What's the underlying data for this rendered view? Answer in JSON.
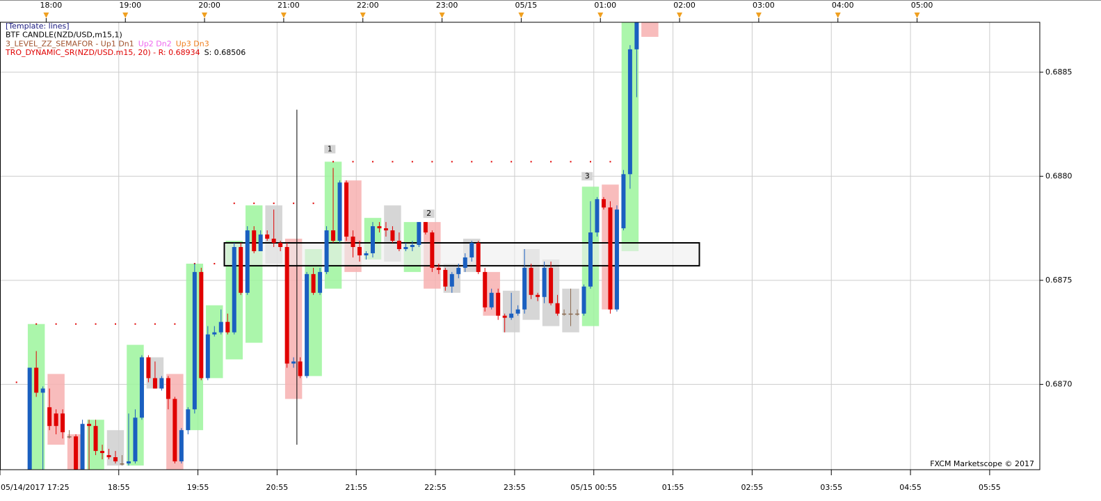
{
  "chart_data": {
    "type": "candlestick",
    "legend_lines": [
      [
        {
          "text": "[Template: lines]",
          "color": "#1a1a80"
        }
      ],
      [
        {
          "text": "BTF CANDLE(NZD/USD,m15,1)",
          "color": "#000000"
        }
      ],
      [
        {
          "text": "3_LEVEL_ZZ_SEMAFOR -  Up1  Dn1",
          "color": "#a0522d"
        },
        {
          "text": "Up2  Dn2",
          "color": "#ee66ee"
        },
        {
          "text": "Up3  Dn3",
          "color": "#f08020"
        }
      ],
      [
        {
          "text": "TRO_DYNAMIC_SR(NZD/USD.m15, 20) -  R: 0.68934",
          "color": "#e00000"
        },
        {
          "text": "S: 0.68506",
          "color": "#000000"
        }
      ]
    ],
    "x": [
      1065,
      1070,
      1075,
      1080,
      1085,
      1090,
      1095,
      1100,
      1105,
      1110,
      1115,
      1120,
      1125,
      1130,
      1135,
      1140,
      1145,
      1150,
      1155,
      1160,
      1165,
      1170,
      1175,
      1180,
      1185,
      1190,
      1195,
      1200,
      1205,
      1210,
      1215,
      1220,
      1225,
      1230,
      1235,
      1240,
      1245,
      1250,
      1255,
      1260,
      1265,
      1270,
      1275,
      1280,
      1285,
      1290,
      1295,
      1300,
      1305,
      1310,
      1315,
      1320,
      1325,
      1330,
      1335,
      1340,
      1345,
      1350,
      1355,
      1360,
      1365,
      1370,
      1375,
      1380,
      1385,
      1390,
      1395,
      1400,
      1405,
      1410,
      1415,
      1420,
      1425,
      1430,
      1435,
      1440,
      1445,
      1450,
      1455,
      1460,
      1465,
      1470,
      1475,
      1480,
      1485,
      1490,
      1495,
      1500,
      1505,
      1510,
      1515,
      1520,
      1525
    ],
    "open": [
      0.68659,
      0.68708,
      0.68696,
      0.68689,
      0.68686,
      0.68686,
      0.68675,
      0.68675,
      0.68659,
      0.68681,
      0.6868,
      0.68668,
      0.68666,
      0.68665,
      0.68662,
      0.68662,
      0.68663,
      0.68684,
      0.68713,
      0.68703,
      0.68698,
      0.68703,
      0.68693,
      0.68663,
      0.68678,
      0.68688,
      0.68754,
      0.68703,
      0.68724,
      0.68725,
      0.6873,
      0.68725,
      0.68766,
      0.68744,
      0.68774,
      0.68764,
      0.68772,
      0.6877,
      0.68768,
      0.68766,
      0.6871,
      0.68711,
      0.68704,
      0.68753,
      0.68744,
      0.68754,
      0.68774,
      0.68769,
      0.68797,
      0.68771,
      0.68766,
      0.68762,
      0.68763,
      0.68776,
      0.68775,
      0.68774,
      0.68769,
      0.68765,
      0.68766,
      0.68767,
      0.68778,
      0.68773,
      0.68756,
      0.68755,
      0.68747,
      0.68753,
      0.68756,
      0.68761,
      0.68768,
      0.68754,
      0.68737,
      0.68744,
      0.68733,
      0.68732,
      0.68734,
      0.68736,
      0.68756,
      0.68743,
      0.68742,
      0.68756,
      0.68739,
      0.68734,
      0.68734,
      0.68734,
      0.68734,
      0.68747,
      0.68773,
      0.68789,
      0.68785,
      0.68736,
      0.68775,
      0.68801,
      0.68861
    ],
    "high": [
      0.68708,
      0.68716,
      0.68699,
      0.68698,
      0.68688,
      0.68688,
      0.68678,
      0.68676,
      0.68683,
      0.68683,
      0.68683,
      0.68671,
      0.68669,
      0.68668,
      0.68666,
      0.68686,
      0.68688,
      0.68714,
      0.68714,
      0.68711,
      0.68704,
      0.68704,
      0.68694,
      0.68679,
      0.68689,
      0.68758,
      0.68756,
      0.68728,
      0.68728,
      0.68736,
      0.68734,
      0.68768,
      0.68768,
      0.68776,
      0.68776,
      0.68774,
      0.68774,
      0.68784,
      0.68769,
      0.68768,
      0.68713,
      0.68713,
      0.68754,
      0.68756,
      0.68756,
      0.68776,
      0.68804,
      0.68798,
      0.68798,
      0.68774,
      0.68769,
      0.68764,
      0.68778,
      0.68778,
      0.68778,
      0.68776,
      0.68773,
      0.68768,
      0.68769,
      0.68778,
      0.68778,
      0.68774,
      0.68758,
      0.68756,
      0.68754,
      0.68758,
      0.68763,
      0.68769,
      0.68769,
      0.68756,
      0.68746,
      0.68746,
      0.68734,
      0.68744,
      0.68738,
      0.68765,
      0.68758,
      0.68744,
      0.68759,
      0.68759,
      0.68743,
      0.68736,
      0.68746,
      0.68736,
      0.68748,
      0.68788,
      0.6879,
      0.6879,
      0.68788,
      0.68786,
      0.68803,
      0.68863,
      0.68874
    ],
    "low": [
      0.68659,
      0.68694,
      0.68659,
      0.68678,
      0.68676,
      0.68674,
      0.68674,
      0.68659,
      0.68659,
      0.68659,
      0.68666,
      0.68664,
      0.68664,
      0.68662,
      0.68661,
      0.68661,
      0.68662,
      0.68683,
      0.68701,
      0.68698,
      0.68697,
      0.68688,
      0.68662,
      0.68662,
      0.68676,
      0.68686,
      0.68702,
      0.68702,
      0.68723,
      0.68724,
      0.68724,
      0.68724,
      0.68743,
      0.68743,
      0.68763,
      0.68764,
      0.68769,
      0.68766,
      0.68764,
      0.68708,
      0.68708,
      0.68703,
      0.68703,
      0.68743,
      0.68743,
      0.68753,
      0.68768,
      0.68768,
      0.68769,
      0.68761,
      0.68759,
      0.6876,
      0.68761,
      0.68773,
      0.68771,
      0.68768,
      0.68764,
      0.68764,
      0.68764,
      0.68766,
      0.68772,
      0.68754,
      0.68753,
      0.68745,
      0.68744,
      0.68751,
      0.68754,
      0.68759,
      0.68753,
      0.68735,
      0.68736,
      0.68731,
      0.68725,
      0.68731,
      0.68733,
      0.68734,
      0.68741,
      0.6874,
      0.68739,
      0.68738,
      0.68733,
      0.68733,
      0.68728,
      0.68733,
      0.68733,
      0.68746,
      0.68771,
      0.68784,
      0.68734,
      0.68735,
      0.68774,
      0.68794,
      0.68838
    ],
    "close": [
      0.68708,
      0.68696,
      0.68698,
      0.6868,
      0.6868,
      0.68677,
      0.68675,
      0.68659,
      0.68681,
      0.6868,
      0.68668,
      0.68667,
      0.68665,
      0.68663,
      0.68662,
      0.68663,
      0.68684,
      0.68713,
      0.68703,
      0.68698,
      0.68703,
      0.68693,
      0.68663,
      0.68678,
      0.68688,
      0.68754,
      0.68703,
      0.68724,
      0.68725,
      0.6873,
      0.68725,
      0.68766,
      0.68744,
      0.68774,
      0.68764,
      0.68772,
      0.6877,
      0.68768,
      0.68766,
      0.6871,
      0.68711,
      0.68704,
      0.68753,
      0.68744,
      0.68754,
      0.68774,
      0.68769,
      0.68797,
      0.68771,
      0.68766,
      0.68762,
      0.68763,
      0.68776,
      0.68775,
      0.68774,
      0.68769,
      0.68765,
      0.68766,
      0.68767,
      0.68778,
      0.68773,
      0.68756,
      0.68755,
      0.68747,
      0.68753,
      0.68756,
      0.68761,
      0.68768,
      0.68754,
      0.68737,
      0.68744,
      0.68733,
      0.68732,
      0.68734,
      0.68736,
      0.68756,
      0.68743,
      0.68742,
      0.68756,
      0.68739,
      0.68734,
      0.68734,
      0.68734,
      0.68734,
      0.68747,
      0.68773,
      0.68789,
      0.68785,
      0.68736,
      0.68784,
      0.68801,
      0.68861,
      0.68874
    ],
    "up_color": "#1a5fc0",
    "down_color": "#e00000",
    "flat_color": "#8a6a50",
    "m15": {
      "x": [
        1065,
        1080,
        1095,
        1110,
        1125,
        1140,
        1155,
        1170,
        1185,
        1200,
        1215,
        1230,
        1245,
        1260,
        1275,
        1290,
        1305,
        1320,
        1335,
        1350,
        1365,
        1380,
        1395,
        1410,
        1425,
        1440,
        1455,
        1470,
        1485,
        1500,
        1515,
        1530
      ],
      "open": [
        0.68659,
        0.68705,
        0.68676,
        0.68659,
        0.68661,
        0.68661,
        0.68698,
        0.68705,
        0.68678,
        0.68703,
        0.68712,
        0.6872,
        0.68758,
        0.6877,
        0.68704,
        0.68746,
        0.68798,
        0.6876,
        0.68759,
        0.68754,
        0.68778,
        0.68744,
        0.68754,
        0.68754,
        0.68725,
        0.68731,
        0.68728,
        0.68725,
        0.68728,
        0.68796,
        0.68764,
        0.68874
      ],
      "close": [
        0.68729,
        0.68671,
        0.68659,
        0.68683,
        0.68678,
        0.68719,
        0.68713,
        0.68659,
        0.68758,
        0.68738,
        0.68769,
        0.68786,
        0.68786,
        0.68693,
        0.68765,
        0.68807,
        0.68754,
        0.6878,
        0.68786,
        0.68778,
        0.68746,
        0.68758,
        0.6877,
        0.68733,
        0.68745,
        0.68765,
        0.6876,
        0.68746,
        0.68795,
        0.68736,
        0.68874,
        0.68867
      ],
      "colors": [
        "#9cf59c",
        "#f7b0b0",
        "#f7b0b0",
        "#9cf59c",
        "#cfcfcf",
        "#9cf59c",
        "#cfcfcf",
        "#f7b0b0",
        "#9cf59c",
        "#9cf59c",
        "#9cf59c",
        "#9cf59c",
        "#cfcfcf",
        "#f7b0b0",
        "#9cf59c",
        "#9cf59c",
        "#f7b0b0",
        "#9cf59c",
        "#cfcfcf",
        "#9cf59c",
        "#f7b0b0",
        "#cfcfcf",
        "#cfcfcf",
        "#f7b0b0",
        "#cfcfcf",
        "#cfcfcf",
        "#cfcfcf",
        "#cfcfcf",
        "#9cf59c",
        "#f7b0b0",
        "#9cf59c",
        "#f7b0b0"
      ]
    },
    "sr": {
      "color": "#e00000",
      "x": [
        1057.5,
        1072.5,
        1087.5,
        1102.5,
        1117.5,
        1132.5,
        1147.5,
        1162.5,
        1177.5,
        1192.5,
        1207.5,
        1222.5,
        1237.5,
        1252.5,
        1267.5,
        1282.5,
        1297.5,
        1312.5,
        1327.5,
        1342.5,
        1357.5,
        1372.5,
        1387.5,
        1402.5,
        1417.5,
        1432.5,
        1447.5,
        1462.5,
        1477.5,
        1492.5,
        1507.5
      ],
      "values": [
        0.68701,
        0.68729,
        0.68729,
        0.68729,
        0.68729,
        0.68729,
        0.68729,
        0.68729,
        0.68729,
        0.68758,
        0.68758,
        0.68787,
        0.68787,
        0.68787,
        0.68787,
        0.68787,
        0.68807,
        0.68807,
        0.68807,
        0.68807,
        0.68807,
        0.68807,
        0.68807,
        0.68807,
        0.68807,
        0.68807,
        0.68807,
        0.68807,
        0.68807,
        0.68807,
        0.68807
      ]
    },
    "semafor": [
      {
        "text": "1",
        "x": 1295,
        "y": 0.68813
      },
      {
        "text": "2",
        "x": 1370,
        "y": 0.68782
      },
      {
        "text": "3",
        "x": 1490,
        "y": 0.688
      }
    ],
    "rectangle": {
      "x": [
        1215,
        1575
      ],
      "y": [
        0.68757,
        0.68768
      ]
    },
    "vertical_line": {
      "x": 1270,
      "y": [
        0.68671,
        0.68832
      ]
    },
    "xlim": [
      1045,
      1833
    ],
    "ylim": [
      0.68659,
      0.68874
    ],
    "xticks": [
      {
        "value": 1045,
        "label": "05/14/2017 17:25"
      },
      {
        "value": 1135,
        "label": "18:55"
      },
      {
        "value": 1195,
        "label": "19:55"
      },
      {
        "value": 1255,
        "label": "20:55"
      },
      {
        "value": 1315,
        "label": "21:55"
      },
      {
        "value": 1375,
        "label": "22:55"
      },
      {
        "value": 1435,
        "label": "23:55"
      },
      {
        "value": 1495,
        "label": "05/15 00:55"
      },
      {
        "value": 1555,
        "label": "01:55"
      },
      {
        "value": 1615,
        "label": "02:55"
      },
      {
        "value": 1675,
        "label": "03:55"
      },
      {
        "value": 1735,
        "label": "04:55"
      },
      {
        "value": 1795,
        "label": "05:55"
      }
    ],
    "x2ticks": [
      {
        "value": 1080,
        "label": "18:00"
      },
      {
        "value": 1140,
        "label": "19:00"
      },
      {
        "value": 1200,
        "label": "20:00"
      },
      {
        "value": 1260,
        "label": "21:00"
      },
      {
        "value": 1320,
        "label": "22:00"
      },
      {
        "value": 1380,
        "label": "23:00"
      },
      {
        "value": 1440,
        "label": "05/15"
      },
      {
        "value": 1500,
        "label": "01:00"
      },
      {
        "value": 1560,
        "label": "02:00"
      },
      {
        "value": 1620,
        "label": "03:00"
      },
      {
        "value": 1680,
        "label": "04:00"
      },
      {
        "value": 1740,
        "label": "05:00"
      }
    ],
    "yticks": [
      {
        "value": 0.687,
        "label": "0.6870"
      },
      {
        "value": 0.6875,
        "label": "0.6875"
      },
      {
        "value": 0.688,
        "label": "0.6880"
      },
      {
        "value": 0.6885,
        "label": "0.6885"
      }
    ],
    "grid": true,
    "watermark": "FXCM Marketscope © 2017"
  }
}
